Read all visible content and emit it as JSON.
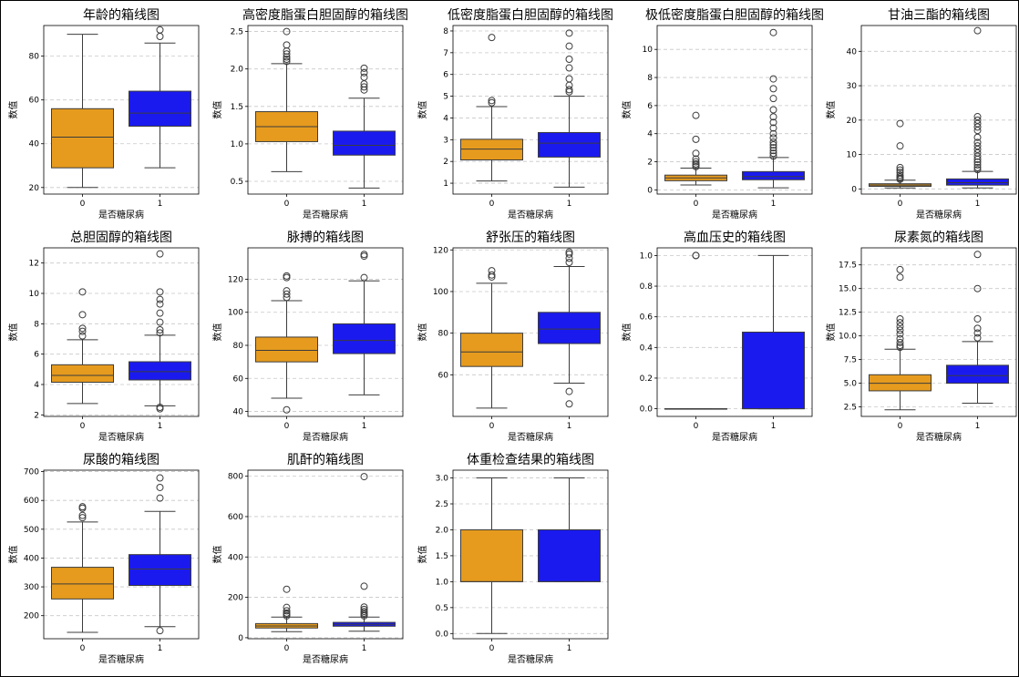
{
  "colors": {
    "group0": "#e69b1e",
    "group1": "#1a1aef"
  },
  "chart_data": [
    {
      "type": "box",
      "title": "年龄的箱线图",
      "xlabel": "是否糖尿病",
      "ylabel": "数值",
      "categories": [
        "0",
        "1"
      ],
      "ylim": [
        17,
        94
      ],
      "yticks": [
        20,
        40,
        60,
        80
      ],
      "boxes": [
        {
          "q1": 29,
          "median": 43,
          "q3": 56,
          "whislo": 20,
          "whishi": 90,
          "fliers": []
        },
        {
          "q1": 48,
          "median": 54,
          "q3": 64,
          "whislo": 29,
          "whishi": 86,
          "fliers": [
            89,
            92
          ]
        }
      ]
    },
    {
      "type": "box",
      "title": "高密度脂蛋白胆固醇的箱线图",
      "xlabel": "是否糖尿病",
      "ylabel": "数值",
      "categories": [
        "0",
        "1"
      ],
      "ylim": [
        0.33,
        2.58
      ],
      "yticks": [
        "0.5",
        "1.0",
        "1.5",
        "2.0",
        "2.5"
      ],
      "boxes": [
        {
          "q1": 1.03,
          "median": 1.23,
          "q3": 1.43,
          "whislo": 0.63,
          "whishi": 2.07,
          "fliers": [
            2.1,
            2.13,
            2.16,
            2.2,
            2.24,
            2.32,
            2.5
          ]
        },
        {
          "q1": 0.85,
          "median": 0.98,
          "q3": 1.17,
          "whislo": 0.41,
          "whishi": 1.61,
          "fliers": [
            1.72,
            1.76,
            1.8,
            1.89,
            1.95,
            2.01
          ]
        }
      ]
    },
    {
      "type": "box",
      "title": "低密度脂蛋白胆固醇的箱线图",
      "xlabel": "是否糖尿病",
      "ylabel": "数值",
      "categories": [
        "0",
        "1"
      ],
      "ylim": [
        0.5,
        8.25
      ],
      "yticks": [
        1,
        2,
        3,
        4,
        5,
        6,
        7,
        8
      ],
      "boxes": [
        {
          "q1": 2.07,
          "median": 2.57,
          "q3": 3.02,
          "whislo": 1.1,
          "whishi": 4.52,
          "fliers": [
            4.7,
            4.8,
            7.7
          ]
        },
        {
          "q1": 2.2,
          "median": 2.84,
          "q3": 3.33,
          "whislo": 0.82,
          "whishi": 5.0,
          "fliers": [
            5.2,
            5.3,
            5.5,
            5.8,
            6.3,
            6.7,
            7.3,
            7.9
          ]
        }
      ]
    },
    {
      "type": "box",
      "title": "极低密度脂蛋白胆固醇的箱线图",
      "xlabel": "是否糖尿病",
      "ylabel": "数值",
      "categories": [
        "0",
        "1"
      ],
      "ylim": [
        -0.3,
        11.7
      ],
      "yticks": [
        0,
        2,
        4,
        6,
        8,
        10
      ],
      "boxes": [
        {
          "q1": 0.65,
          "median": 0.85,
          "q3": 1.05,
          "whislo": 0.35,
          "whishi": 1.55,
          "fliers": [
            1.65,
            1.75,
            1.85,
            2.0,
            2.2,
            2.6,
            3.6,
            5.3
          ]
        },
        {
          "q1": 0.72,
          "median": 0.95,
          "q3": 1.3,
          "whislo": 0.15,
          "whishi": 2.3,
          "fliers": [
            2.4,
            2.6,
            2.8,
            3.0,
            3.2,
            3.4,
            3.7,
            4.0,
            4.4,
            4.8,
            5.2,
            5.7,
            6.5,
            7.2,
            7.9,
            11.2
          ]
        }
      ]
    },
    {
      "type": "box",
      "title": "甘油三酯的箱线图",
      "xlabel": "是否糖尿病",
      "ylabel": "数值",
      "categories": [
        "0",
        "1"
      ],
      "ylim": [
        -1.5,
        47.5
      ],
      "yticks": [
        0,
        10,
        20,
        30,
        40
      ],
      "boxes": [
        {
          "q1": 0.75,
          "median": 1.1,
          "q3": 1.5,
          "whislo": 0.3,
          "whishi": 2.55,
          "fliers": [
            2.8,
            3.1,
            3.5,
            4.0,
            4.8,
            5.5,
            6.2,
            12.5,
            19
          ]
        },
        {
          "q1": 1.1,
          "median": 1.8,
          "q3": 2.9,
          "whislo": 0.3,
          "whishi": 5.1,
          "fliers": [
            5.6,
            6.2,
            7,
            7.8,
            8.6,
            9.5,
            10.5,
            11.5,
            12.5,
            13.5,
            15,
            17,
            18,
            19,
            20,
            21,
            46
          ]
        }
      ]
    },
    {
      "type": "box",
      "title": "总胆固醇的箱线图",
      "xlabel": "是否糖尿病",
      "ylabel": "数值",
      "categories": [
        "0",
        "1"
      ],
      "ylim": [
        1.9,
        13.0
      ],
      "yticks": [
        2,
        4,
        6,
        8,
        10,
        12
      ],
      "boxes": [
        {
          "q1": 4.15,
          "median": 4.6,
          "q3": 5.3,
          "whislo": 2.75,
          "whishi": 6.95,
          "fliers": [
            7.2,
            7.5,
            7.7,
            8.6,
            10.1
          ]
        },
        {
          "q1": 4.3,
          "median": 4.85,
          "q3": 5.5,
          "whislo": 2.6,
          "whishi": 7.25,
          "fliers": [
            2.4,
            2.5,
            7.4,
            7.6,
            8.1,
            8.7,
            9.3,
            9.6,
            10.1,
            12.6
          ]
        }
      ]
    },
    {
      "type": "box",
      "title": "脉搏的箱线图",
      "xlabel": "是否糖尿病",
      "ylabel": "数值",
      "categories": [
        "0",
        "1"
      ],
      "ylim": [
        37,
        139
      ],
      "yticks": [
        40,
        60,
        80,
        100,
        120
      ],
      "boxes": [
        {
          "q1": 70,
          "median": 77,
          "q3": 85,
          "whislo": 48,
          "whishi": 107,
          "fliers": [
            41,
            109,
            111,
            113,
            121,
            122
          ]
        },
        {
          "q1": 75,
          "median": 83,
          "q3": 93,
          "whislo": 50,
          "whishi": 119,
          "fliers": [
            121,
            134,
            135
          ]
        }
      ]
    },
    {
      "type": "box",
      "title": "舒张压的箱线图",
      "xlabel": "是否糖尿病",
      "ylabel": "数值",
      "categories": [
        "0",
        "1"
      ],
      "ylim": [
        40,
        121
      ],
      "yticks": [
        60,
        80,
        100,
        120
      ],
      "boxes": [
        {
          "q1": 64,
          "median": 71,
          "q3": 80,
          "whislo": 44,
          "whishi": 104,
          "fliers": [
            107,
            108,
            110
          ]
        },
        {
          "q1": 75,
          "median": 82,
          "q3": 90,
          "whislo": 56,
          "whishi": 112,
          "fliers": [
            46,
            52,
            114,
            116,
            118,
            119
          ]
        }
      ]
    },
    {
      "type": "box",
      "title": "高血压史的箱线图",
      "xlabel": "是否糖尿病",
      "ylabel": "数值",
      "categories": [
        "0",
        "1"
      ],
      "ylim": [
        -0.05,
        1.05
      ],
      "yticks": [
        "0.0",
        "0.2",
        "0.4",
        "0.6",
        "0.8",
        "1.0"
      ],
      "boxes": [
        {
          "q1": 0,
          "median": 0,
          "q3": 0,
          "whislo": 0,
          "whishi": 0,
          "fliers": [
            1.0,
            1.0
          ]
        },
        {
          "q1": 0,
          "median": 0,
          "q3": 0.5,
          "whislo": 0,
          "whishi": 1.0,
          "fliers": []
        }
      ]
    },
    {
      "type": "box",
      "title": "尿素氮的箱线图",
      "xlabel": "是否糖尿病",
      "ylabel": "数值",
      "categories": [
        "0",
        "1"
      ],
      "ylim": [
        1.5,
        19.3
      ],
      "yticks": [
        "2.5",
        "5.0",
        "7.5",
        "10.0",
        "12.5",
        "15.0",
        "17.5"
      ],
      "boxes": [
        {
          "q1": 4.2,
          "median": 5.0,
          "q3": 5.9,
          "whislo": 2.2,
          "whishi": 8.6,
          "fliers": [
            8.8,
            9.0,
            9.3,
            9.7,
            10.2,
            10.6,
            11.0,
            11.4,
            11.8,
            16.2,
            17.0
          ]
        },
        {
          "q1": 5.0,
          "median": 5.8,
          "q3": 6.9,
          "whislo": 2.9,
          "whishi": 9.4,
          "fliers": [
            9.8,
            10.3,
            10.8,
            11.8,
            15.0,
            18.6
          ]
        }
      ]
    },
    {
      "type": "box",
      "title": "尿酸的箱线图",
      "xlabel": "是否糖尿病",
      "ylabel": "数值",
      "categories": [
        "0",
        "1"
      ],
      "ylim": [
        120,
        705
      ],
      "yticks": [
        200,
        300,
        400,
        500,
        600,
        700
      ],
      "boxes": [
        {
          "q1": 258,
          "median": 310,
          "q3": 368,
          "whislo": 142,
          "whishi": 525,
          "fliers": [
            540,
            548,
            573,
            578
          ]
        },
        {
          "q1": 305,
          "median": 362,
          "q3": 412,
          "whislo": 162,
          "whishi": 562,
          "fliers": [
            148,
            608,
            645,
            678
          ]
        }
      ]
    },
    {
      "type": "box",
      "title": "肌酐的箱线图",
      "xlabel": "是否糖尿病",
      "ylabel": "数值",
      "categories": [
        "0",
        "1"
      ],
      "ylim": [
        -5,
        830
      ],
      "yticks": [
        0,
        200,
        400,
        600,
        800
      ],
      "boxes": [
        {
          "q1": 48,
          "median": 58,
          "q3": 70,
          "whislo": 30,
          "whishi": 102,
          "fliers": [
            108,
            115,
            122,
            133,
            150,
            240
          ]
        },
        {
          "q1": 57,
          "median": 66,
          "q3": 76,
          "whislo": 32,
          "whishi": 102,
          "fliers": [
            108,
            115,
            122,
            130,
            140,
            152,
            255,
            798
          ]
        }
      ]
    },
    {
      "type": "box",
      "title": "体重检查结果的箱线图",
      "xlabel": "是否糖尿病",
      "ylabel": "数值",
      "categories": [
        "0",
        "1"
      ],
      "ylim": [
        -0.1,
        3.15
      ],
      "yticks": [
        "0.0",
        "0.5",
        "1.0",
        "1.5",
        "2.0",
        "2.5",
        "3.0"
      ],
      "boxes": [
        {
          "q1": 1.0,
          "median": 1.0,
          "q3": 2.0,
          "whislo": 0.0,
          "whishi": 3.0,
          "fliers": []
        },
        {
          "q1": 1.0,
          "median": 1.0,
          "q3": 2.0,
          "whislo": 1.0,
          "whishi": 3.0,
          "fliers": []
        }
      ]
    }
  ]
}
